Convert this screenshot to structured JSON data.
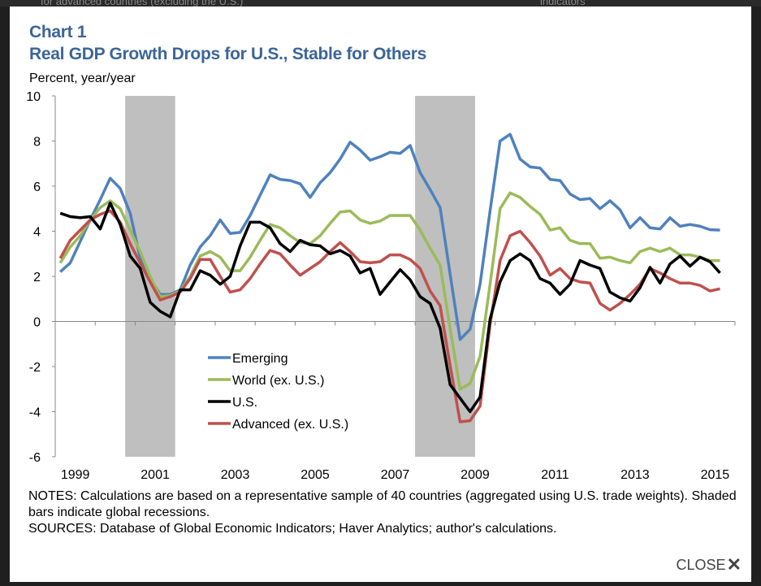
{
  "background": {
    "left_text": "for advanced countries (excluding the U.S.)",
    "right_text": "indicators"
  },
  "header": {
    "chart_number": "Chart 1",
    "title": "Real GDP Growth Drops for U.S., Stable for Others",
    "unit": "Percent, year/year"
  },
  "notes": {
    "notes": "NOTES: Calculations are based on a representative sample of 40 countries (aggregated using U.S. trade weights). Shaded bars indicate global recessions.",
    "sources": "SOURCES: Database of Global Economic Indicators; Haver Analytics; author's calculations."
  },
  "close_label": "CLOSE",
  "colors": {
    "title": "#3b6598",
    "recession_shade": "#bfbfbf"
  },
  "chart_data": {
    "type": "line",
    "title": "Real GDP Growth Drops for U.S., Stable for Others",
    "ylabel": "Percent, year/year",
    "xlabel": "",
    "frequency": "quarterly",
    "x_start": "1999Q1",
    "x_end": "2015Q3",
    "ylim": [
      -6,
      10
    ],
    "yticks": [
      "10",
      "8",
      "6",
      "4",
      "2",
      "0",
      "-2",
      "-4",
      "-6"
    ],
    "xticks": [
      "1999",
      "2001",
      "2003",
      "2005",
      "2007",
      "2009",
      "2011",
      "2013",
      "2015"
    ],
    "xlim_years": [
      1999,
      2016
    ],
    "grid": false,
    "legend": "center-left inside plot",
    "recessions": [
      [
        2000.75,
        2002.0
      ],
      [
        2008.0,
        2009.5
      ]
    ],
    "series": [
      {
        "name": "Emerging",
        "color": "#4f81bd",
        "values": [
          2.2,
          2.6,
          3.55,
          4.5,
          5.4,
          6.35,
          5.9,
          4.8,
          2.8,
          1.9,
          1.2,
          1.2,
          1.4,
          2.5,
          3.3,
          3.8,
          4.5,
          3.9,
          3.95,
          4.7,
          5.6,
          6.5,
          6.3,
          6.25,
          6.1,
          5.5,
          6.15,
          6.6,
          7.2,
          7.95,
          7.6,
          7.15,
          7.3,
          7.5,
          7.45,
          7.8,
          6.6,
          5.85,
          5.05,
          2.1,
          -0.8,
          -0.35,
          1.65,
          4.9,
          8.0,
          8.3,
          7.2,
          6.85,
          6.8,
          6.3,
          6.25,
          5.65,
          5.4,
          5.45,
          5.0,
          5.35,
          4.95,
          4.15,
          4.6,
          4.15,
          4.1,
          4.6,
          4.22,
          4.3,
          4.22,
          4.07,
          4.05
        ]
      },
      {
        "name": "World (ex. U.S.)",
        "color": "#9bbb59",
        "values": [
          2.6,
          3.3,
          3.8,
          4.5,
          5.05,
          5.35,
          5.0,
          4.05,
          3.1,
          2.0,
          1.1,
          1.15,
          1.35,
          2.0,
          2.9,
          3.1,
          2.85,
          2.25,
          2.25,
          2.85,
          3.6,
          4.3,
          4.15,
          3.8,
          3.5,
          3.45,
          3.8,
          4.35,
          4.85,
          4.9,
          4.5,
          4.35,
          4.45,
          4.7,
          4.7,
          4.7,
          4.05,
          3.25,
          2.5,
          -0.3,
          -3.0,
          -2.75,
          -1.55,
          1.65,
          5.0,
          5.7,
          5.5,
          5.1,
          4.75,
          4.05,
          4.15,
          3.6,
          3.45,
          3.45,
          2.8,
          2.85,
          2.7,
          2.6,
          3.1,
          3.25,
          3.1,
          3.25,
          2.95,
          2.95,
          2.85,
          2.7,
          2.7
        ]
      },
      {
        "name": "U.S.",
        "color": "#000000",
        "values": [
          4.8,
          4.65,
          4.6,
          4.65,
          4.1,
          5.25,
          4.3,
          2.9,
          2.35,
          0.85,
          0.45,
          0.2,
          1.4,
          1.4,
          2.25,
          2.05,
          1.65,
          2.0,
          3.35,
          4.4,
          4.4,
          4.15,
          3.45,
          3.1,
          3.6,
          3.4,
          3.35,
          3.0,
          3.15,
          2.9,
          2.15,
          2.35,
          1.2,
          1.75,
          2.3,
          1.85,
          1.1,
          0.8,
          -0.3,
          -2.8,
          -3.4,
          -4.0,
          -3.35,
          0.1,
          1.75,
          2.7,
          3.0,
          2.7,
          1.9,
          1.7,
          1.2,
          1.65,
          2.7,
          2.5,
          2.35,
          1.3,
          1.05,
          0.9,
          1.5,
          2.4,
          1.7,
          2.55,
          2.9,
          2.45,
          2.85,
          2.65,
          2.15
        ]
      },
      {
        "name": "Advanced (ex. U.S.)",
        "color": "#c0504d",
        "values": [
          2.8,
          3.6,
          4.05,
          4.5,
          4.75,
          4.9,
          4.4,
          3.45,
          2.6,
          1.75,
          0.95,
          1.1,
          1.3,
          1.9,
          2.75,
          2.75,
          2.0,
          1.3,
          1.4,
          1.9,
          2.55,
          3.15,
          3.0,
          2.5,
          2.05,
          2.35,
          2.65,
          3.1,
          3.5,
          3.1,
          2.65,
          2.6,
          2.65,
          2.95,
          2.95,
          2.75,
          2.35,
          1.35,
          0.7,
          -1.95,
          -4.45,
          -4.4,
          -3.75,
          -0.15,
          2.7,
          3.8,
          4.0,
          3.5,
          2.9,
          2.05,
          2.35,
          1.9,
          1.75,
          1.7,
          0.8,
          0.5,
          0.8,
          1.2,
          1.65,
          2.35,
          2.15,
          1.9,
          1.7,
          1.7,
          1.6,
          1.35,
          1.45
        ]
      }
    ]
  }
}
